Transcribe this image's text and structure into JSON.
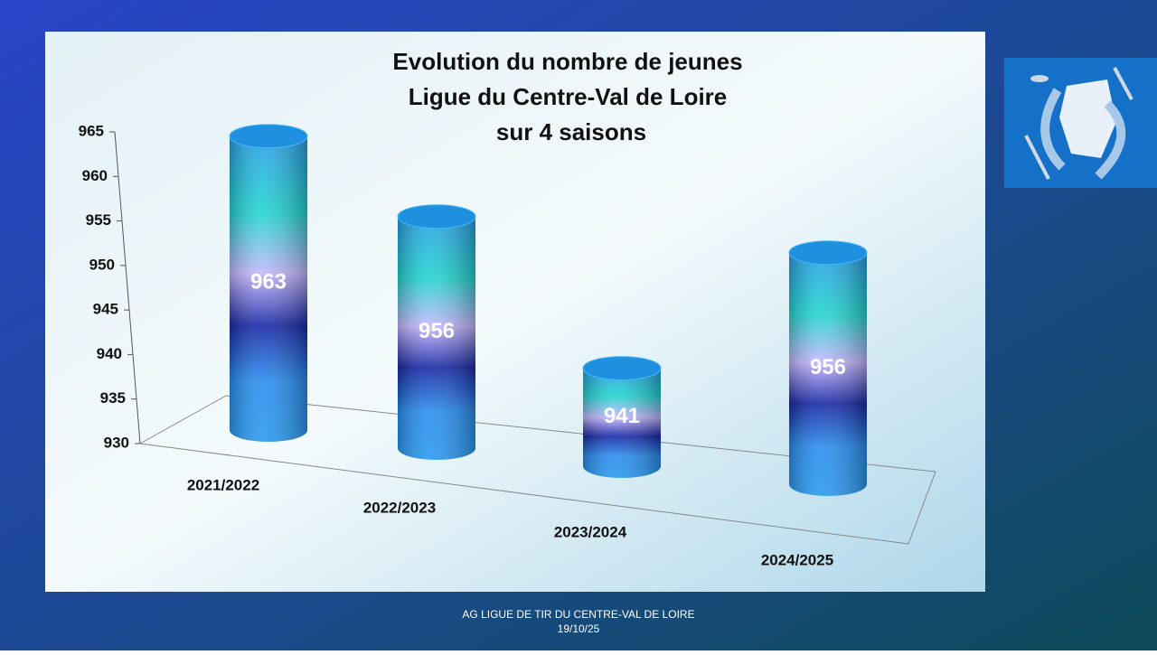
{
  "chart_data": {
    "type": "bar",
    "title": [
      "Evolution du nombre de jeunes",
      "Ligue du Centre-Val de Loire",
      "sur 4 saisons"
    ],
    "categories": [
      "2021/2022",
      "2022/2023",
      "2023/2024",
      "2024/2025"
    ],
    "values": [
      963,
      956,
      941,
      956
    ],
    "ylim": [
      930,
      965
    ],
    "yticks": [
      930,
      935,
      940,
      945,
      950,
      955,
      960,
      965
    ]
  },
  "footer": {
    "line1": "AG LIGUE DE TIR DU CENTRE-VAL DE LOIRE",
    "line2": "19/10/25"
  }
}
